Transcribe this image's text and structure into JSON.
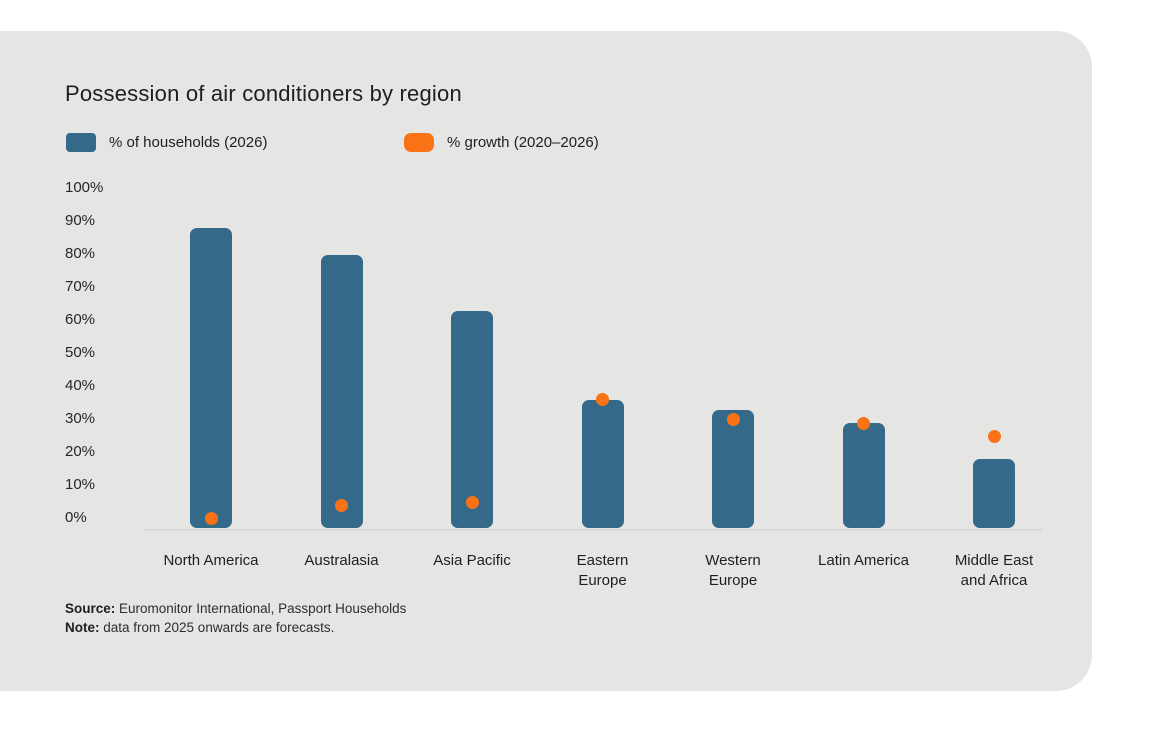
{
  "page": {
    "background": "#ffffff",
    "card_background": "#e5e5e4"
  },
  "chart": {
    "title": "Possession of air conditioners by region",
    "legend": [
      {
        "label": "% of households (2026)",
        "color": "#35698a",
        "swatch_shape": "rounded-square"
      },
      {
        "label": "% growth (2020–2026)",
        "color": "#f97316",
        "swatch_shape": "rounded-pill"
      }
    ],
    "y_axis": {
      "tick_labels": [
        "100%",
        "90%",
        "80%",
        "70%",
        "60%",
        "50%",
        "40%",
        "30%",
        "20%",
        "10%",
        "0%"
      ],
      "min": 0,
      "max": 100,
      "step": 10
    },
    "axis_line_color": "#d8d8d6",
    "bar_color": "#35698a",
    "dot_color": "#f97316",
    "text_color": "#1e1e1e"
  },
  "chart_data": {
    "type": "bar",
    "title": "Possession of air conditioners by region",
    "categories": [
      "North America",
      "Australasia",
      "Asia Pacific",
      "Eastern Europe",
      "Western Europe",
      "Latin America",
      "Middle East and Africa"
    ],
    "category_lines": [
      [
        "North America"
      ],
      [
        "Australasia"
      ],
      [
        "Asia Pacific"
      ],
      [
        "Eastern",
        "Europe"
      ],
      [
        "Western",
        "Europe"
      ],
      [
        "Latin America"
      ],
      [
        "Middle East",
        "and Africa"
      ]
    ],
    "series": [
      {
        "name": "% of households (2026)",
        "type": "bar",
        "color": "#35698a",
        "values": [
          89,
          81,
          64,
          37,
          34,
          30,
          19
        ]
      },
      {
        "name": "% growth (2020–2026)",
        "type": "scatter",
        "color": "#f97316",
        "values": [
          1,
          5,
          6,
          37,
          31,
          30,
          26
        ]
      }
    ],
    "xlabel": "",
    "ylabel": "",
    "ylim": [
      0,
      100
    ],
    "grid": false,
    "legend_position": "top"
  },
  "footer": {
    "source_label": "Source:",
    "source_text": " Euromonitor International, Passport Households",
    "note_label": "Note:",
    "note_text": " data from 2025 onwards are forecasts."
  }
}
